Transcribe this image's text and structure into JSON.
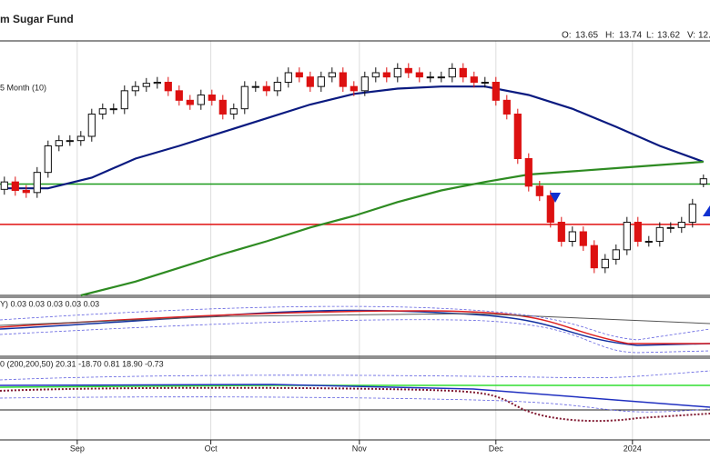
{
  "chart_data": {
    "type": "candlestick",
    "title": "m Sugar Fund",
    "ohlc_labels": [
      "O:",
      "H:",
      "L:",
      "V:"
    ],
    "ohlc_values": [
      "13.65",
      "13.74",
      "13.62",
      "12."
    ],
    "legend_text": "5 Month (10)",
    "panel2_text": "Y) 0.03 0.03 0.03 0.03 0.03",
    "panel3_text": "0 (200,200,50) 20.31 -18.70 0.81 18.90 -0.73",
    "up_color": "#111111",
    "down_color": "#dd1111",
    "ylim": [
      12.6,
      15.0
    ],
    "xlim": [
      -0.4,
      64.6
    ],
    "xticks": [
      {
        "value": 6.67,
        "label": "Sep"
      },
      {
        "value": 18.9,
        "label": "Oct"
      },
      {
        "value": 32.5,
        "label": "Nov"
      },
      {
        "value": 45,
        "label": "Dec"
      },
      {
        "value": 57.5,
        "label": "2024"
      }
    ],
    "open": [
      13.6,
      13.67,
      13.59,
      13.57,
      13.76,
      14.01,
      14.06,
      14.06,
      14.1,
      14.31,
      14.36,
      14.36,
      14.53,
      14.57,
      14.6,
      14.61,
      14.53,
      14.44,
      14.4,
      14.49,
      14.44,
      14.31,
      14.36,
      14.57,
      14.57,
      14.53,
      14.61,
      14.7,
      14.66,
      14.57,
      14.66,
      14.7,
      14.57,
      14.53,
      14.66,
      14.7,
      14.66,
      14.74,
      14.7,
      14.66,
      14.66,
      14.66,
      14.74,
      14.66,
      14.61,
      14.61,
      14.44,
      14.31,
      13.89,
      13.63,
      13.54,
      13.29,
      13.11,
      13.2,
      13.07,
      12.86,
      12.94,
      13.03,
      13.29,
      13.11,
      13.11,
      13.24,
      13.24,
      13.29,
      13.65
    ],
    "high": [
      13.72,
      13.72,
      13.64,
      13.81,
      14.06,
      14.11,
      14.11,
      14.15,
      14.36,
      14.41,
      14.41,
      14.58,
      14.62,
      14.65,
      14.66,
      14.66,
      14.58,
      14.49,
      14.54,
      14.54,
      14.49,
      14.41,
      14.62,
      14.62,
      14.62,
      14.66,
      14.75,
      14.75,
      14.71,
      14.71,
      14.75,
      14.75,
      14.62,
      14.71,
      14.75,
      14.75,
      14.79,
      14.79,
      14.75,
      14.71,
      14.71,
      14.79,
      14.79,
      14.71,
      14.66,
      14.66,
      14.49,
      14.36,
      13.94,
      13.68,
      13.59,
      13.34,
      13.25,
      13.25,
      13.12,
      12.99,
      13.08,
      13.34,
      13.34,
      13.16,
      13.29,
      13.29,
      13.34,
      13.51,
      13.74
    ],
    "low": [
      13.55,
      13.54,
      13.52,
      13.52,
      13.71,
      13.96,
      14.01,
      14.01,
      14.05,
      14.26,
      14.31,
      14.31,
      14.48,
      14.52,
      14.55,
      14.48,
      14.39,
      14.35,
      14.35,
      14.39,
      14.26,
      14.26,
      14.31,
      14.52,
      14.48,
      14.48,
      14.56,
      14.61,
      14.52,
      14.52,
      14.61,
      14.52,
      14.48,
      14.48,
      14.61,
      14.61,
      14.61,
      14.65,
      14.61,
      14.61,
      14.61,
      14.61,
      14.61,
      14.56,
      14.56,
      14.39,
      14.26,
      13.84,
      13.58,
      13.49,
      13.24,
      13.06,
      13.06,
      13.02,
      12.81,
      12.81,
      12.89,
      12.98,
      13.06,
      13.06,
      13.06,
      13.19,
      13.19,
      13.24,
      13.62
    ],
    "close": [
      13.67,
      13.59,
      13.57,
      13.76,
      14.01,
      14.06,
      14.06,
      14.1,
      14.31,
      14.36,
      14.36,
      14.53,
      14.57,
      14.6,
      14.61,
      14.53,
      14.44,
      14.4,
      14.49,
      14.44,
      14.31,
      14.36,
      14.57,
      14.57,
      14.53,
      14.61,
      14.7,
      14.66,
      14.57,
      14.66,
      14.7,
      14.57,
      14.53,
      14.66,
      14.7,
      14.66,
      14.74,
      14.7,
      14.66,
      14.66,
      14.66,
      14.74,
      14.66,
      14.61,
      14.61,
      14.44,
      14.31,
      13.89,
      13.63,
      13.54,
      13.29,
      13.11,
      13.2,
      13.07,
      12.86,
      12.94,
      13.03,
      13.29,
      13.11,
      13.11,
      13.24,
      13.24,
      13.29,
      13.46,
      13.7
    ],
    "lines": [
      {
        "color": "#0a1a80",
        "x": [
          0,
          4,
          8,
          12,
          16,
          20,
          24,
          28,
          32,
          36,
          40,
          44,
          48,
          52,
          56,
          60,
          64
        ],
        "values": [
          13.61,
          13.61,
          13.71,
          13.89,
          14.01,
          14.14,
          14.27,
          14.4,
          14.5,
          14.55,
          14.57,
          14.57,
          14.49,
          14.36,
          14.19,
          14.01,
          13.86
        ]
      },
      {
        "color": "#2e8b22",
        "x": [
          7,
          12,
          16,
          20,
          24,
          28,
          32,
          36,
          40,
          44,
          48,
          52,
          56,
          60,
          64
        ],
        "values": [
          12.6,
          12.73,
          12.86,
          12.99,
          13.11,
          13.24,
          13.35,
          13.48,
          13.59,
          13.67,
          13.74,
          13.77,
          13.8,
          13.83,
          13.86
        ]
      }
    ],
    "hlines": [
      {
        "value": 13.65,
        "color": "#1a9a1a"
      },
      {
        "value": 13.27,
        "color": "#e01010"
      }
    ]
  }
}
